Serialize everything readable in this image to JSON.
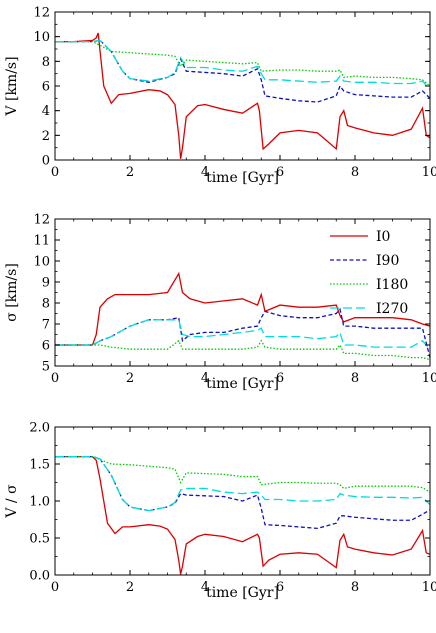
{
  "chart_data": [
    {
      "type": "line",
      "title": "",
      "xlabel": "time [Gyr]",
      "ylabel": "V [km/s]",
      "xlim": [
        0,
        10
      ],
      "ylim": [
        0,
        12
      ],
      "xticks": [
        0,
        2,
        4,
        6,
        8,
        10
      ],
      "yticks": [
        0,
        2,
        4,
        6,
        8,
        10,
        12
      ],
      "legend": false,
      "series": [
        {
          "name": "I0",
          "color": "#dd0000",
          "dash": "solid",
          "x": [
            0,
            0.5,
            1.0,
            1.1,
            1.15,
            1.3,
            1.5,
            1.7,
            2.0,
            2.5,
            2.8,
            3.0,
            3.2,
            3.3,
            3.35,
            3.4,
            3.5,
            3.8,
            4.0,
            4.5,
            5.0,
            5.4,
            5.45,
            5.55,
            5.7,
            6.0,
            6.5,
            7.0,
            7.5,
            7.6,
            7.7,
            7.8,
            8.0,
            8.5,
            9.0,
            9.5,
            9.8,
            9.9,
            10.0
          ],
          "y": [
            9.6,
            9.6,
            9.7,
            9.9,
            10.3,
            6.0,
            4.6,
            5.3,
            5.4,
            5.7,
            5.6,
            5.3,
            4.5,
            2.0,
            0.1,
            1.0,
            3.5,
            4.4,
            4.5,
            4.1,
            3.8,
            4.6,
            4.0,
            0.9,
            1.3,
            2.2,
            2.4,
            2.2,
            0.9,
            3.5,
            4.0,
            2.8,
            2.6,
            2.2,
            2.0,
            2.5,
            4.2,
            2.0,
            1.8
          ]
        },
        {
          "name": "I90",
          "color": "#1010c0",
          "dash": "dashed",
          "x": [
            0,
            0.5,
            1.0,
            1.2,
            1.5,
            1.8,
            2.0,
            2.5,
            3.0,
            3.2,
            3.35,
            3.5,
            4.0,
            4.5,
            5.0,
            5.4,
            5.5,
            5.6,
            6.0,
            6.5,
            7.0,
            7.5,
            7.6,
            7.7,
            8.0,
            8.5,
            9.0,
            9.5,
            9.8,
            10.0
          ],
          "y": [
            9.6,
            9.6,
            9.6,
            9.7,
            8.8,
            7.2,
            6.6,
            6.3,
            6.7,
            7.0,
            8.2,
            7.2,
            7.1,
            7.0,
            6.8,
            7.4,
            6.5,
            5.2,
            5.0,
            4.8,
            4.7,
            5.2,
            6.0,
            5.6,
            5.3,
            5.2,
            5.1,
            5.1,
            5.6,
            5.0
          ]
        },
        {
          "name": "I180",
          "color": "#00cc00",
          "dash": "dotted",
          "x": [
            0,
            0.5,
            1.0,
            1.2,
            1.5,
            2.0,
            2.5,
            3.0,
            3.2,
            3.35,
            3.5,
            4.0,
            4.5,
            5.0,
            5.4,
            5.5,
            6.0,
            6.5,
            7.0,
            7.5,
            7.6,
            7.7,
            8.0,
            8.5,
            9.0,
            9.5,
            9.8,
            10.0
          ],
          "y": [
            9.6,
            9.6,
            9.6,
            9.3,
            8.8,
            8.7,
            8.6,
            8.5,
            8.4,
            7.6,
            8.1,
            8.0,
            7.9,
            7.8,
            7.9,
            7.2,
            7.3,
            7.3,
            7.2,
            7.2,
            7.3,
            6.7,
            6.8,
            6.7,
            6.7,
            6.6,
            6.5,
            6.0
          ]
        },
        {
          "name": "I270",
          "color": "#00dddd",
          "dash": "longdash",
          "x": [
            0,
            0.5,
            1.0,
            1.2,
            1.5,
            1.8,
            2.0,
            2.5,
            3.0,
            3.2,
            3.35,
            3.5,
            4.0,
            4.5,
            5.0,
            5.4,
            5.5,
            5.6,
            6.0,
            6.5,
            7.0,
            7.5,
            7.6,
            7.7,
            8.0,
            8.5,
            9.0,
            9.5,
            9.8,
            10.0
          ],
          "y": [
            9.6,
            9.6,
            9.6,
            9.7,
            8.8,
            7.2,
            6.6,
            6.4,
            6.7,
            7.1,
            8.3,
            7.5,
            7.5,
            7.3,
            7.2,
            7.6,
            7.0,
            6.5,
            6.5,
            6.4,
            6.3,
            6.4,
            6.8,
            6.4,
            6.3,
            6.3,
            6.2,
            6.2,
            6.4,
            5.7
          ]
        }
      ]
    },
    {
      "type": "line",
      "title": "",
      "xlabel": "time [Gyr]",
      "ylabel": "σ [km/s]",
      "xlim": [
        0,
        10
      ],
      "ylim": [
        5,
        12
      ],
      "xticks": [
        0,
        2,
        4,
        6,
        8,
        10
      ],
      "yticks": [
        5,
        6,
        7,
        8,
        9,
        10,
        11,
        12
      ],
      "legend": true,
      "legend_position": "top-right",
      "legend_entries": [
        "I0",
        "I90",
        "I180",
        "I270"
      ],
      "series": [
        {
          "name": "I0",
          "color": "#dd0000",
          "dash": "solid",
          "x": [
            0,
            0.5,
            1.0,
            1.1,
            1.2,
            1.4,
            1.6,
            2.0,
            2.5,
            3.0,
            3.3,
            3.4,
            3.6,
            4.0,
            4.5,
            5.0,
            5.4,
            5.5,
            5.6,
            6.0,
            6.5,
            7.0,
            7.5,
            7.6,
            7.7,
            8.0,
            8.5,
            9.0,
            9.5,
            9.8,
            10.0
          ],
          "y": [
            6.0,
            6.0,
            6.0,
            6.5,
            7.8,
            8.2,
            8.4,
            8.4,
            8.4,
            8.5,
            9.4,
            8.5,
            8.2,
            8.0,
            8.1,
            8.2,
            7.9,
            8.4,
            7.6,
            7.9,
            7.8,
            7.8,
            7.9,
            7.4,
            7.1,
            7.3,
            7.3,
            7.3,
            7.2,
            7.0,
            6.9
          ]
        },
        {
          "name": "I90",
          "color": "#1010c0",
          "dash": "dashed",
          "x": [
            0,
            0.5,
            1.0,
            1.2,
            1.5,
            2.0,
            2.5,
            3.0,
            3.3,
            3.4,
            3.6,
            4.0,
            4.5,
            5.0,
            5.4,
            5.5,
            5.6,
            6.0,
            6.5,
            7.0,
            7.5,
            7.6,
            7.7,
            8.0,
            8.5,
            9.0,
            9.5,
            9.8,
            10.0
          ],
          "y": [
            6.0,
            6.0,
            6.0,
            6.2,
            6.4,
            6.9,
            7.2,
            7.2,
            7.3,
            6.2,
            6.5,
            6.6,
            6.6,
            6.8,
            6.9,
            7.3,
            7.6,
            7.4,
            7.3,
            7.3,
            7.5,
            7.7,
            6.9,
            6.9,
            6.8,
            6.8,
            6.8,
            6.8,
            5.4
          ]
        },
        {
          "name": "I180",
          "color": "#00cc00",
          "dash": "dotted",
          "x": [
            0,
            0.5,
            1.0,
            1.2,
            1.5,
            2.0,
            2.5,
            3.0,
            3.3,
            3.4,
            3.6,
            4.0,
            4.5,
            5.0,
            5.4,
            5.5,
            5.6,
            6.0,
            6.5,
            7.0,
            7.5,
            7.6,
            7.7,
            8.0,
            8.5,
            9.0,
            9.5,
            9.8,
            10.0
          ],
          "y": [
            6.0,
            6.0,
            6.0,
            6.0,
            5.9,
            5.8,
            5.8,
            5.8,
            6.2,
            5.8,
            5.8,
            5.8,
            5.8,
            5.8,
            5.9,
            6.2,
            5.9,
            5.8,
            5.8,
            5.8,
            5.8,
            6.0,
            5.6,
            5.6,
            5.5,
            5.5,
            5.4,
            5.4,
            5.3
          ]
        },
        {
          "name": "I270",
          "color": "#00dddd",
          "dash": "longdash",
          "x": [
            0,
            0.5,
            1.0,
            1.2,
            1.5,
            2.0,
            2.5,
            3.0,
            3.3,
            3.4,
            3.6,
            4.0,
            4.5,
            5.0,
            5.4,
            5.5,
            5.6,
            6.0,
            6.5,
            7.0,
            7.5,
            7.6,
            7.7,
            8.0,
            8.5,
            9.0,
            9.5,
            9.8,
            10.0
          ],
          "y": [
            6.0,
            6.0,
            6.0,
            6.2,
            6.4,
            6.9,
            7.2,
            7.2,
            7.2,
            6.5,
            6.4,
            6.4,
            6.5,
            6.6,
            6.7,
            6.8,
            6.4,
            6.4,
            6.4,
            6.3,
            6.4,
            6.6,
            6.0,
            6.0,
            5.9,
            5.9,
            5.9,
            6.2,
            5.8
          ]
        }
      ]
    },
    {
      "type": "line",
      "title": "",
      "xlabel": "time [Gyr]",
      "ylabel": "V / σ",
      "xlim": [
        0,
        10
      ],
      "ylim": [
        0,
        2
      ],
      "xticks": [
        0,
        2,
        4,
        6,
        8,
        10
      ],
      "yticks": [
        0.0,
        0.5,
        1.0,
        1.5,
        2.0
      ],
      "ytick_labels": [
        "0.0",
        "0.5",
        "1.0",
        "1.5",
        "2.0"
      ],
      "legend": false,
      "series": [
        {
          "name": "I0",
          "color": "#dd0000",
          "dash": "solid",
          "x": [
            0,
            0.5,
            1.0,
            1.1,
            1.2,
            1.4,
            1.6,
            1.8,
            2.0,
            2.5,
            2.8,
            3.0,
            3.2,
            3.3,
            3.35,
            3.4,
            3.5,
            3.8,
            4.0,
            4.5,
            5.0,
            5.4,
            5.45,
            5.55,
            5.7,
            6.0,
            6.5,
            7.0,
            7.5,
            7.6,
            7.7,
            7.8,
            8.0,
            8.5,
            9.0,
            9.5,
            9.8,
            9.9,
            10.0
          ],
          "y": [
            1.6,
            1.6,
            1.6,
            1.55,
            1.3,
            0.7,
            0.56,
            0.65,
            0.65,
            0.68,
            0.66,
            0.62,
            0.48,
            0.2,
            0.01,
            0.12,
            0.42,
            0.52,
            0.55,
            0.52,
            0.45,
            0.55,
            0.5,
            0.12,
            0.2,
            0.28,
            0.3,
            0.28,
            0.1,
            0.47,
            0.55,
            0.38,
            0.35,
            0.3,
            0.27,
            0.35,
            0.6,
            0.3,
            0.28
          ]
        },
        {
          "name": "I90",
          "color": "#1010c0",
          "dash": "dashed",
          "x": [
            0,
            0.5,
            1.0,
            1.2,
            1.5,
            1.8,
            2.0,
            2.5,
            3.0,
            3.2,
            3.35,
            3.5,
            4.0,
            4.5,
            5.0,
            5.4,
            5.5,
            5.6,
            6.0,
            6.5,
            7.0,
            7.5,
            7.6,
            7.7,
            8.0,
            8.5,
            9.0,
            9.5,
            9.8,
            10.0
          ],
          "y": [
            1.6,
            1.6,
            1.6,
            1.57,
            1.35,
            1.02,
            0.92,
            0.87,
            0.92,
            0.97,
            1.1,
            1.08,
            1.07,
            1.06,
            1.0,
            1.08,
            0.9,
            0.68,
            0.67,
            0.65,
            0.63,
            0.7,
            0.8,
            0.8,
            0.78,
            0.76,
            0.74,
            0.74,
            0.82,
            0.88
          ]
        },
        {
          "name": "I180",
          "color": "#00cc00",
          "dash": "dotted",
          "x": [
            0,
            0.5,
            1.0,
            1.2,
            1.5,
            2.0,
            2.5,
            3.0,
            3.2,
            3.35,
            3.5,
            4.0,
            4.5,
            5.0,
            5.4,
            5.5,
            6.0,
            6.5,
            7.0,
            7.5,
            7.6,
            7.7,
            8.0,
            8.5,
            9.0,
            9.5,
            9.8,
            10.0
          ],
          "y": [
            1.6,
            1.6,
            1.6,
            1.56,
            1.5,
            1.49,
            1.47,
            1.45,
            1.43,
            1.25,
            1.38,
            1.37,
            1.36,
            1.33,
            1.33,
            1.22,
            1.25,
            1.25,
            1.24,
            1.24,
            1.22,
            1.17,
            1.2,
            1.2,
            1.2,
            1.2,
            1.18,
            1.12
          ]
        },
        {
          "name": "I270",
          "color": "#00dddd",
          "dash": "longdash",
          "x": [
            0,
            0.5,
            1.0,
            1.2,
            1.5,
            1.8,
            2.0,
            2.5,
            3.0,
            3.2,
            3.35,
            3.5,
            4.0,
            4.5,
            5.0,
            5.4,
            5.5,
            5.6,
            6.0,
            6.5,
            7.0,
            7.5,
            7.6,
            7.7,
            8.0,
            8.5,
            9.0,
            9.5,
            9.8,
            10.0
          ],
          "y": [
            1.6,
            1.6,
            1.6,
            1.57,
            1.35,
            1.02,
            0.92,
            0.87,
            0.92,
            0.98,
            1.15,
            1.17,
            1.17,
            1.12,
            1.1,
            1.12,
            1.08,
            1.02,
            1.02,
            1.0,
            1.0,
            1.02,
            1.1,
            1.08,
            1.06,
            1.05,
            1.05,
            1.04,
            1.05,
            0.95
          ]
        }
      ]
    }
  ]
}
